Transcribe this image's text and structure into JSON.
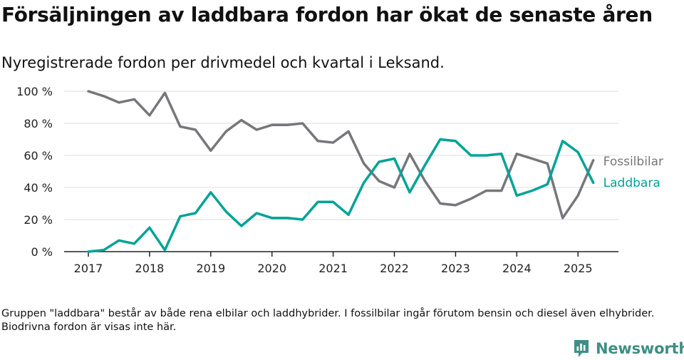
{
  "title": "Försäljningen av laddbara fordon har ökat de senaste åren",
  "subtitle": "Nyregistrerade fordon per drivmedel och kvartal i Leksand.",
  "footnote": "Gruppen \"laddbara\" består av både rena elbilar och laddhybrider. I fossilbilar ingår förutom bensin och diesel även elhybrider. Biodrivna fordon är visas inte här.",
  "brand": {
    "name": "Newsworthy",
    "icon": "newsworthy-logo-icon",
    "color": "#3f8e84"
  },
  "chart_data": {
    "type": "line",
    "title": "Försäljningen av laddbara fordon har ökat de senaste åren",
    "subtitle": "Nyregistrerade fordon per drivmedel och kvartal i Leksand.",
    "xlabel": "",
    "ylabel": "",
    "x_ticks": [
      "2017",
      "2018",
      "2019",
      "2020",
      "2021",
      "2022",
      "2023",
      "2024",
      "2025"
    ],
    "y_ticks": [
      "0 %",
      "20 %",
      "40 %",
      "60 %",
      "80 %",
      "100 %"
    ],
    "ylim": [
      0,
      100
    ],
    "grid": "horizontal",
    "legend": "direct labels at line ends (right)",
    "x": [
      "2017 Q1",
      "2017 Q2",
      "2017 Q3",
      "2017 Q4",
      "2018 Q1",
      "2018 Q2",
      "2018 Q3",
      "2018 Q4",
      "2019 Q1",
      "2019 Q2",
      "2019 Q3",
      "2019 Q4",
      "2020 Q1",
      "2020 Q2",
      "2020 Q3",
      "2020 Q4",
      "2021 Q1",
      "2021 Q2",
      "2021 Q3",
      "2021 Q4",
      "2022 Q1",
      "2022 Q2",
      "2022 Q3",
      "2022 Q4",
      "2023 Q1",
      "2023 Q2",
      "2023 Q3",
      "2023 Q4",
      "2024 Q1",
      "2024 Q2",
      "2024 Q3",
      "2024 Q4",
      "2025 Q1",
      "2025 Q2"
    ],
    "series": [
      {
        "name": "Fossilbilar",
        "color": "#77767b",
        "values": [
          100,
          97,
          93,
          95,
          85,
          99,
          78,
          76,
          63,
          75,
          82,
          76,
          79,
          79,
          80,
          69,
          68,
          75,
          55,
          44,
          40,
          61,
          44,
          30,
          29,
          33,
          38,
          38,
          61,
          58,
          55,
          21,
          35,
          57
        ]
      },
      {
        "name": "Laddbara",
        "color": "#00a397",
        "values": [
          0,
          1,
          7,
          5,
          15,
          1,
          22,
          24,
          37,
          25,
          16,
          24,
          21,
          21,
          20,
          31,
          31,
          23,
          43,
          56,
          58,
          37,
          54,
          70,
          69,
          60,
          60,
          61,
          35,
          38,
          42,
          69,
          62,
          43
        ]
      }
    ]
  }
}
